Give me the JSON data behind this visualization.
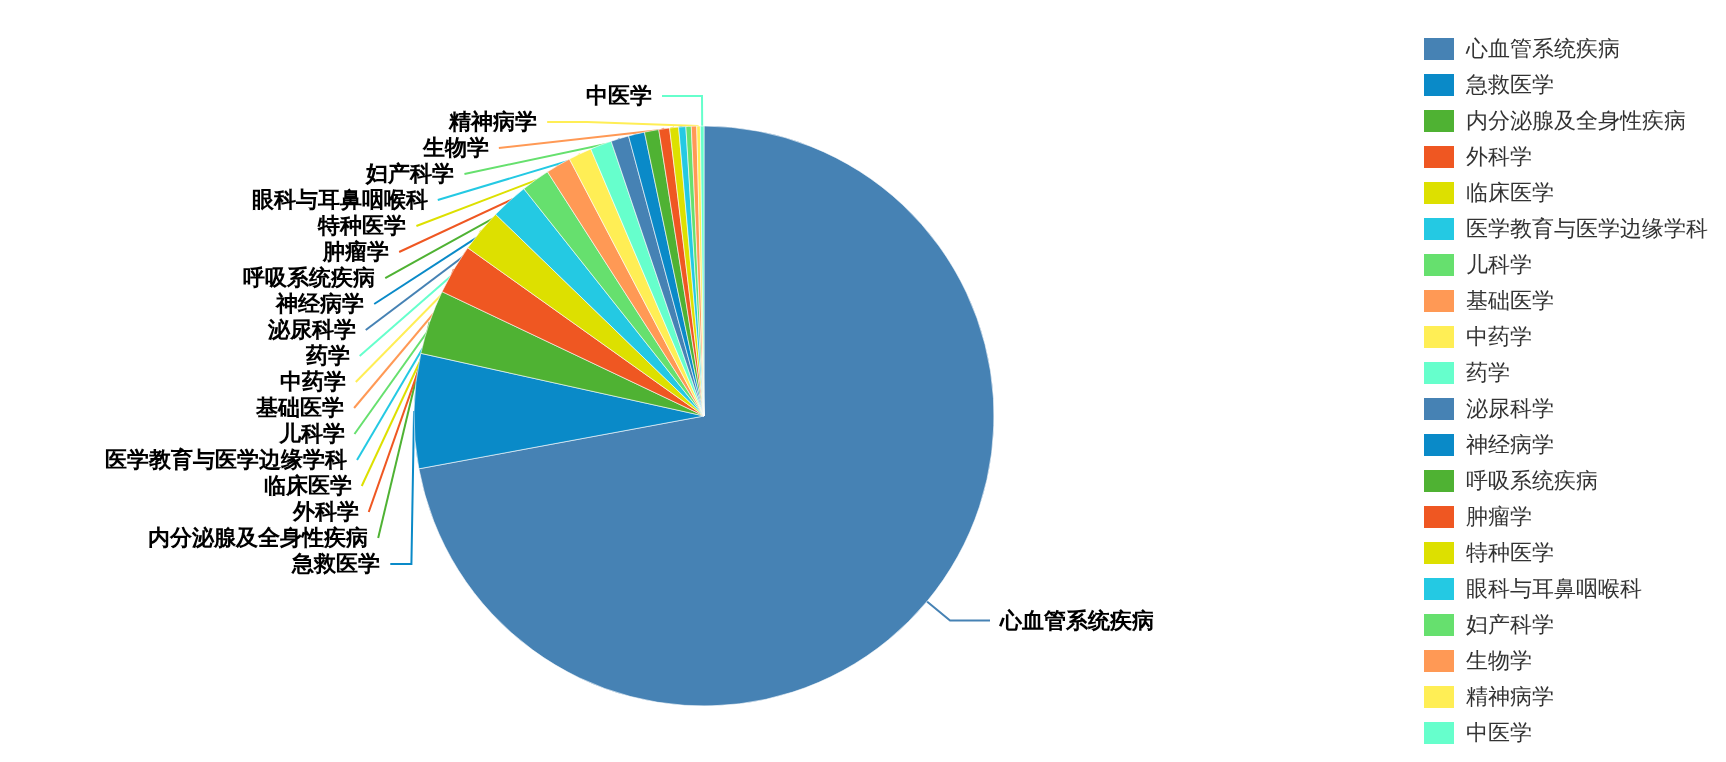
{
  "chart_data": {
    "type": "pie",
    "categories": [
      "心血管系统疾病",
      "急救医学",
      "内分泌腺及全身性疾病",
      "外科学",
      "临床医学",
      "医学教育与医学边缘学科",
      "儿科学",
      "基础医学",
      "中药学",
      "药学",
      "泌尿科学",
      "神经病学",
      "呼吸系统疾病",
      "肿瘤学",
      "特种医学",
      "眼科与耳鼻咽喉科",
      "妇产科学",
      "生物学",
      "精神病学",
      "中医学"
    ],
    "values": [
      72.3,
      6.4,
      3.6,
      2.8,
      2.4,
      2.1,
      1.6,
      1.4,
      1.3,
      1.2,
      1.0,
      0.9,
      0.8,
      0.6,
      0.5,
      0.4,
      0.3,
      0.3,
      0.2,
      0.2
    ],
    "colors": [
      "#4682b4",
      "#0a8ac8",
      "#4fb233",
      "#ef5722",
      "#dde000",
      "#24c9e3",
      "#66e06e",
      "#ff9955",
      "#ffee55",
      "#66ffcc",
      "#4682b4",
      "#0a8ac8",
      "#4fb233",
      "#ef5722",
      "#dde000",
      "#24c9e3",
      "#66e06e",
      "#ff9955",
      "#ffee55",
      "#66ffcc"
    ],
    "legend": "right"
  }
}
